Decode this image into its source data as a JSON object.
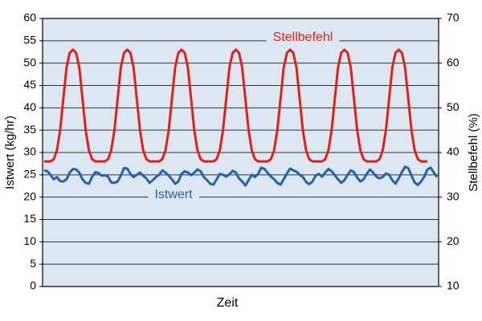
{
  "chart_data": {
    "type": "line",
    "xlabel": "Zeit",
    "ylabel": "Istwert (kg/hr)",
    "y2label": "Stellbefehl (%)",
    "categories": [
      null,
      null,
      null,
      null,
      null,
      null,
      null,
      null,
      null,
      null,
      null,
      null,
      null,
      null,
      null,
      null,
      null,
      null,
      null,
      null,
      null,
      null,
      null,
      null,
      null,
      null,
      null,
      null,
      null,
      null,
      null,
      null,
      null,
      null,
      null,
      null,
      null,
      null,
      null,
      null,
      null,
      null,
      null,
      null,
      null,
      null,
      null,
      null,
      null,
      null,
      null,
      null,
      null,
      null,
      null,
      null,
      null,
      null,
      null,
      null,
      null,
      null,
      null,
      null,
      null,
      null,
      null,
      null,
      null,
      null,
      null,
      null,
      null,
      null,
      null,
      null,
      null,
      null,
      null,
      null,
      null,
      null,
      null,
      null,
      null,
      null,
      null,
      null,
      null,
      null,
      null,
      null,
      null,
      null,
      null,
      null,
      null,
      null,
      null,
      null,
      null,
      null,
      null,
      null,
      null,
      null,
      null,
      null,
      null,
      null,
      null,
      null,
      null,
      null,
      null,
      null,
      null,
      null,
      null,
      null,
      null,
      null,
      null,
      null
    ],
    "series": [
      {
        "name": "Stellbefehl",
        "color": "#e0201b",
        "axis": "y2",
        "values": [
          38,
          38,
          38,
          38.5,
          40.5,
          45,
          52,
          59,
          62.3,
          63,
          62.3,
          59,
          52,
          45,
          40.5,
          38.5,
          38,
          38,
          38,
          38,
          38.5,
          40.5,
          45,
          52,
          59,
          62.3,
          63,
          62.3,
          59,
          52,
          45,
          40.5,
          38.5,
          38,
          38,
          38,
          38,
          38.5,
          40.5,
          45,
          52,
          59,
          62.3,
          63,
          62.3,
          59,
          52,
          45,
          40.5,
          38.5,
          38,
          38,
          38,
          38,
          38.5,
          40.5,
          45,
          52,
          59,
          62.3,
          63,
          62.3,
          59,
          52,
          45,
          40.5,
          38.5,
          38,
          38,
          38,
          38,
          38.5,
          40.5,
          45,
          52,
          59,
          62.3,
          63,
          62.3,
          59,
          52,
          45,
          40.5,
          38.5,
          38,
          38,
          38,
          38,
          38.5,
          40.5,
          45,
          52,
          59,
          62.3,
          63,
          62.3,
          59,
          52,
          45,
          40.5,
          38.5,
          38,
          38,
          38,
          38,
          38.5,
          40.5,
          45,
          52,
          59,
          62.3,
          63,
          62.3,
          59,
          52,
          45,
          40.5,
          38.5,
          38,
          38,
          38,
          null,
          null,
          null
        ]
      },
      {
        "name": "Istwert",
        "color": "#1f64ad",
        "values": [
          26,
          25.8,
          25,
          24,
          24.5,
          23.6,
          23.5,
          24,
          25.5,
          26.3,
          26.2,
          25.5,
          24,
          23.2,
          23,
          24.5,
          25.6,
          25.4,
          24.8,
          24.9,
          24.6,
          23.3,
          23.2,
          23.5,
          24.8,
          26.5,
          26.4,
          25.2,
          24.5,
          25,
          25.5,
          24.8,
          24.2,
          23.2,
          23.8,
          24.5,
          25,
          26,
          25.5,
          24.8,
          24,
          23,
          23.5,
          25.2,
          25.8,
          25.5,
          24.9,
          25.5,
          26.2,
          25.8,
          24.5,
          23.8,
          23,
          22.8,
          24,
          25.2,
          25,
          24.6,
          25.1,
          25.9,
          25.5,
          24.2,
          23.5,
          22.6,
          23.8,
          25,
          24.5,
          25.2,
          26.6,
          26.3,
          25.4,
          24.6,
          24,
          23.2,
          22.8,
          24,
          25.3,
          26.4,
          26,
          25.7,
          25,
          24.5,
          23.4,
          22.9,
          23.5,
          24.8,
          25.2,
          24.6,
          25.5,
          26.3,
          25.8,
          24.9,
          24,
          23.2,
          23.8,
          25,
          26,
          25.6,
          24.4,
          23.5,
          24,
          25.2,
          26.2,
          25.5,
          24.6,
          24.2,
          24.5,
          25.3,
          25,
          23.8,
          23,
          24.2,
          25.6,
          26.8,
          26.5,
          24.8,
          23.3,
          22.7,
          23.5,
          24.6,
          26.2,
          26.6,
          25.5,
          24.5
        ]
      }
    ],
    "ylim": [
      0,
      60
    ],
    "yticks": [
      0,
      5,
      10,
      15,
      20,
      25,
      30,
      35,
      40,
      45,
      50,
      55,
      60
    ],
    "y2lim": [
      10,
      70
    ],
    "y2ticks": [
      10,
      20,
      30,
      40,
      50,
      60,
      70
    ],
    "grid": true
  }
}
